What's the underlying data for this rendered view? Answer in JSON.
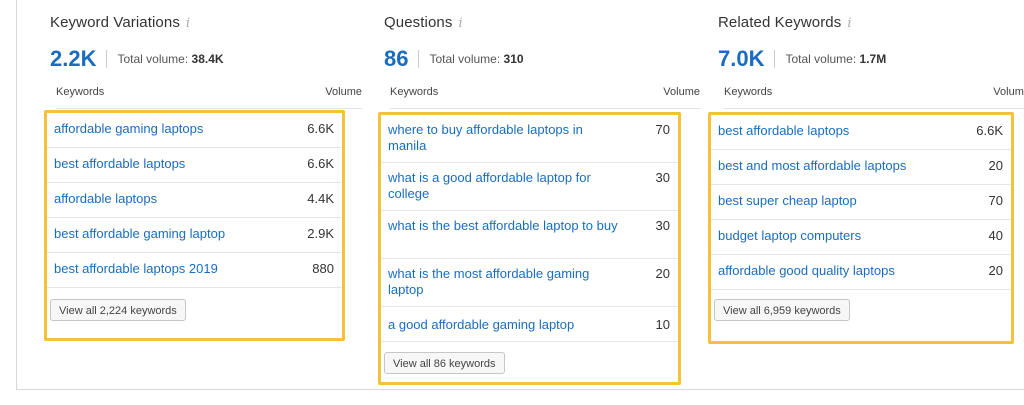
{
  "panels": [
    {
      "title": "Keyword Variations",
      "count": "2.2K",
      "total_label": "Total volume:",
      "total_value": "38.4K",
      "col_keyword": "Keywords",
      "col_volume": "Volume",
      "rows": [
        {
          "keyword": "affordable gaming laptops",
          "volume": "6.6K"
        },
        {
          "keyword": "best affordable laptops",
          "volume": "6.6K"
        },
        {
          "keyword": "affordable laptops",
          "volume": "4.4K"
        },
        {
          "keyword": "best affordable gaming laptop",
          "volume": "2.9K"
        },
        {
          "keyword": "best affordable laptops 2019",
          "volume": "880"
        }
      ],
      "view_all": "View all 2,224 keywords"
    },
    {
      "title": "Questions",
      "count": "86",
      "total_label": "Total volume:",
      "total_value": "310",
      "col_keyword": "Keywords",
      "col_volume": "Volume",
      "rows": [
        {
          "keyword": "where to buy affordable laptops in manila",
          "volume": "70"
        },
        {
          "keyword": "what is a good affordable laptop for college",
          "volume": "30"
        },
        {
          "keyword": "what is the best affordable laptop to buy",
          "volume": "30"
        },
        {
          "keyword": "what is the most affordable gaming laptop",
          "volume": "20"
        },
        {
          "keyword": "a good affordable gaming laptop",
          "volume": "10"
        }
      ],
      "view_all": "View all 86 keywords"
    },
    {
      "title": "Related Keywords",
      "count": "7.0K",
      "total_label": "Total volume:",
      "total_value": "1.7M",
      "col_keyword": "Keywords",
      "col_volume": "Volume",
      "rows": [
        {
          "keyword": "best affordable laptops",
          "volume": "6.6K"
        },
        {
          "keyword": "best and most affordable laptops",
          "volume": "20"
        },
        {
          "keyword": "best super cheap laptop",
          "volume": "70"
        },
        {
          "keyword": "budget laptop computers",
          "volume": "40"
        },
        {
          "keyword": "affordable good quality laptops",
          "volume": "20"
        }
      ],
      "view_all": "View all 6,959 keywords"
    }
  ],
  "icons": {
    "info": "info-icon",
    "info_glyph": "i"
  },
  "colors": {
    "accent": "#1a6dbe",
    "highlight": "#f3c13a"
  }
}
